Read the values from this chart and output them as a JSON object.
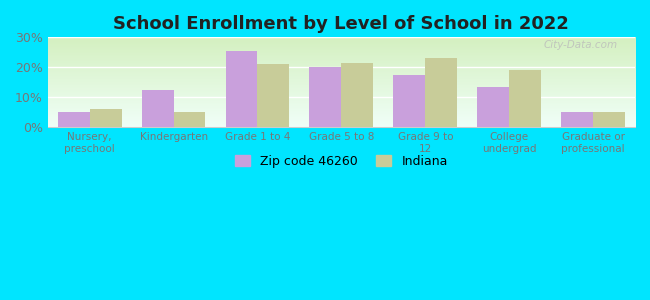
{
  "title": "School Enrollment by Level of School in 2022",
  "categories": [
    "Nursery,\npreschool",
    "Kindergarten",
    "Grade 1 to 4",
    "Grade 5 to 8",
    "Grade 9 to\n12",
    "College\nundergrad",
    "Graduate or\nprofessional"
  ],
  "zip_values": [
    5.0,
    12.5,
    25.5,
    20.0,
    17.5,
    13.5,
    5.0
  ],
  "indiana_values": [
    6.0,
    5.0,
    21.0,
    21.5,
    23.0,
    19.0,
    5.0
  ],
  "zip_color": "#c9a0dc",
  "indiana_color": "#c8cc99",
  "background_outer": "#00e5ff",
  "gradient_top": "#f0fff8",
  "gradient_bottom": "#d4f0c0",
  "ylim": [
    0,
    30
  ],
  "yticks": [
    0,
    10,
    20,
    30
  ],
  "ytick_labels": [
    "0%",
    "10%",
    "20%",
    "30%"
  ],
  "legend_zip_label": "Zip code 46260",
  "legend_indiana_label": "Indiana",
  "bar_width": 0.38,
  "watermark_text": "City-Data.com"
}
